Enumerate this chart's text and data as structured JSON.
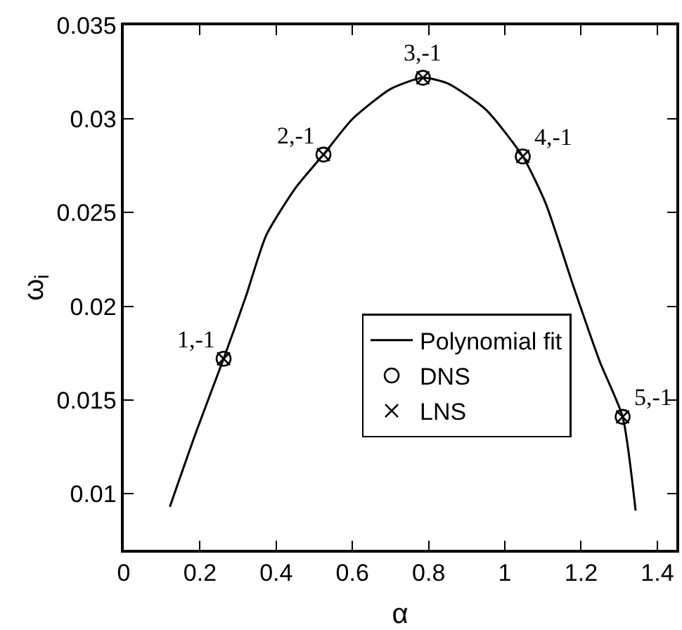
{
  "chart_data": {
    "type": "scatter",
    "xlabel": "α",
    "ylabel": "ω$_{i}$",
    "xlim": [
      0,
      1.45
    ],
    "xticks": [
      0,
      0.2,
      0.4,
      0.6,
      0.8,
      1,
      1.2,
      1.4
    ],
    "ylim": [
      0.007,
      0.035
    ],
    "yticks": [
      0.01,
      0.015,
      0.02,
      0.025,
      0.03,
      0.035
    ],
    "grid": false,
    "legend": "right",
    "series": [
      {
        "name": "Polynomial fit",
        "type": "line",
        "color": "#000000",
        "marker": "none",
        "line_style": "solid",
        "x": [
          0.121,
          0.19,
          0.262,
          0.32,
          0.374,
          0.45,
          0.524,
          0.6,
          0.7,
          0.785,
          0.85,
          0.95,
          1.047,
          1.107,
          1.181,
          1.25,
          1.309,
          1.343
        ],
        "values": [
          0.0093,
          0.0133,
          0.0172,
          0.0205,
          0.0238,
          0.0263,
          0.0281,
          0.03,
          0.0316,
          0.0322,
          0.0319,
          0.0305,
          0.028,
          0.0255,
          0.021,
          0.017,
          0.0141,
          0.0091
        ]
      },
      {
        "name": "DNS",
        "color": "#000000",
        "marker": "circle",
        "x": [
          0.262,
          0.524,
          0.785,
          1.047,
          1.309
        ],
        "values": [
          0.0172,
          0.0281,
          0.0322,
          0.028,
          0.0141
        ]
      },
      {
        "name": "LNS",
        "color": "#000000",
        "marker": "cross",
        "x": [
          0.262,
          0.524,
          0.785,
          1.047,
          1.309
        ],
        "values": [
          0.0172,
          0.0281,
          0.0322,
          0.028,
          0.0141
        ]
      }
    ],
    "annotations": [
      {
        "text": "1,-1",
        "x": 0.262,
        "y": 0.0172
      },
      {
        "text": "2,-1",
        "x": 0.524,
        "y": 0.0281
      },
      {
        "text": "3,-1",
        "x": 0.785,
        "y": 0.0322
      },
      {
        "text": "4,-1",
        "x": 1.047,
        "y": 0.028
      },
      {
        "text": "5,-1",
        "x": 1.309,
        "y": 0.0141
      }
    ]
  }
}
